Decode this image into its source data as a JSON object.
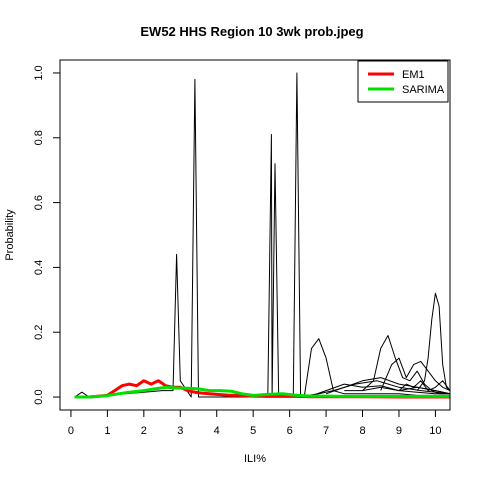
{
  "chart_data": {
    "type": "line",
    "title": "EW52 HHS Region 10 3wk prob.jpeg",
    "xlabel": "ILI%",
    "ylabel": "Probability",
    "xlim": [
      -0.3,
      10.4
    ],
    "ylim": [
      -0.04,
      1.04
    ],
    "xticks": [
      0,
      1,
      2,
      3,
      4,
      5,
      6,
      7,
      8,
      9,
      10
    ],
    "yticks": [
      0.0,
      0.2,
      0.4,
      0.6,
      0.8,
      1.0
    ],
    "xtick_labels": [
      "0",
      "1",
      "2",
      "3",
      "4",
      "5",
      "6",
      "7",
      "8",
      "9",
      "10"
    ],
    "ytick_labels": [
      "0.0",
      "0.2",
      "0.4",
      "0.6",
      "0.8",
      "1.0"
    ],
    "legend_position": "top-right",
    "legend": [
      {
        "label": "EM1",
        "color": "#ff0000"
      },
      {
        "label": "SARIMA",
        "color": "#00e000"
      }
    ],
    "series": [
      {
        "name": "EM1",
        "color": "#ff0000",
        "width": 3,
        "x": [
          0.1,
          0.5,
          1.0,
          1.2,
          1.4,
          1.6,
          1.8,
          2.0,
          2.2,
          2.4,
          2.6,
          2.8,
          3.0,
          3.2,
          3.4,
          3.6,
          3.8,
          4.0,
          4.3,
          4.6,
          5.0,
          5.4,
          5.8,
          6.2,
          6.6,
          7.0,
          7.5,
          8.0,
          9.0,
          10.0,
          10.4
        ],
        "y": [
          0.0,
          0.0,
          0.005,
          0.02,
          0.035,
          0.04,
          0.035,
          0.05,
          0.04,
          0.05,
          0.035,
          0.03,
          0.03,
          0.02,
          0.015,
          0.012,
          0.01,
          0.008,
          0.006,
          0.005,
          0.003,
          0.002,
          0.002,
          0.002,
          0.001,
          0.001,
          0.001,
          0.001,
          0.0,
          0.0,
          0.0
        ]
      },
      {
        "name": "SARIMA",
        "color": "#00e000",
        "width": 3,
        "x": [
          0.1,
          0.5,
          1.0,
          1.3,
          1.6,
          2.0,
          2.3,
          2.6,
          2.9,
          3.2,
          3.5,
          3.8,
          4.1,
          4.4,
          4.7,
          5.0,
          5.4,
          5.8,
          6.2,
          6.6,
          7.0,
          7.5,
          8.0,
          8.5,
          9.0,
          9.5,
          10.0,
          10.4
        ],
        "y": [
          0.0,
          0.0,
          0.004,
          0.01,
          0.015,
          0.02,
          0.025,
          0.03,
          0.028,
          0.027,
          0.025,
          0.02,
          0.02,
          0.018,
          0.01,
          0.005,
          0.008,
          0.01,
          0.005,
          0.003,
          0.003,
          0.002,
          0.002,
          0.002,
          0.002,
          0.002,
          0.002,
          0.002
        ]
      },
      {
        "x": [
          0.1,
          0.3,
          0.5,
          1.0,
          1.5,
          2.0,
          2.5,
          2.8,
          2.9,
          3.0,
          3.3,
          3.4,
          3.5,
          3.6,
          4.0,
          5.0,
          5.4,
          5.5,
          5.52,
          5.6,
          5.7,
          6.0,
          6.1,
          6.2,
          6.3,
          6.5,
          7.0,
          8.0,
          9.0,
          10.0,
          10.4
        ],
        "y": [
          0.0,
          0.015,
          0.0,
          0.005,
          0.01,
          0.015,
          0.02,
          0.02,
          0.44,
          0.05,
          0.0,
          0.98,
          0.0,
          0.0,
          0.0,
          0.0,
          0.0,
          0.81,
          0.0,
          0.72,
          0.0,
          0.0,
          0.0,
          1.0,
          0.0,
          0.0,
          0.0,
          0.0,
          0.0,
          0.0,
          0.0
        ]
      },
      {
        "x": [
          6.4,
          6.6,
          6.8,
          7.0,
          7.2,
          7.5,
          8.0,
          8.5,
          9.0,
          9.5,
          10.0,
          10.4
        ],
        "y": [
          0.0,
          0.15,
          0.18,
          0.12,
          0.02,
          0.01,
          0.01,
          0.01,
          0.01,
          0.005,
          0.005,
          0.0
        ]
      },
      {
        "x": [
          8.0,
          8.3,
          8.5,
          8.7,
          8.9,
          9.1,
          9.3,
          9.5,
          9.7,
          9.9,
          10.1,
          10.4
        ],
        "y": [
          0.02,
          0.05,
          0.15,
          0.19,
          0.12,
          0.06,
          0.05,
          0.08,
          0.04,
          0.02,
          0.01,
          0.01
        ]
      },
      {
        "x": [
          9.5,
          9.7,
          9.8,
          9.9,
          10.0,
          10.1,
          10.2,
          10.3,
          10.4
        ],
        "y": [
          0.02,
          0.05,
          0.12,
          0.24,
          0.32,
          0.28,
          0.1,
          0.03,
          0.02
        ]
      },
      {
        "x": [
          8.5,
          8.8,
          9.0,
          9.2,
          9.4,
          9.6,
          9.8,
          10.0,
          10.2,
          10.4
        ],
        "y": [
          0.02,
          0.1,
          0.12,
          0.06,
          0.1,
          0.11,
          0.08,
          0.05,
          0.03,
          0.02
        ]
      },
      {
        "x": [
          7.0,
          7.5,
          8.0,
          8.5,
          9.0,
          9.5,
          10.0,
          10.4
        ],
        "y": [
          0.01,
          0.03,
          0.05,
          0.06,
          0.04,
          0.03,
          0.02,
          0.01
        ]
      },
      {
        "x": [
          6.5,
          7.0,
          7.5,
          8.0,
          8.5,
          9.0,
          9.5,
          10.0,
          10.4
        ],
        "y": [
          0.0,
          0.02,
          0.04,
          0.03,
          0.035,
          0.02,
          0.03,
          0.02,
          0.01
        ]
      },
      {
        "x": [
          7.5,
          8.0,
          8.5,
          9.0,
          9.5,
          10.0,
          10.4
        ],
        "y": [
          0.02,
          0.02,
          0.03,
          0.02,
          0.015,
          0.01,
          0.01
        ]
      },
      {
        "x": [
          9.0,
          9.2,
          9.4,
          9.6,
          9.8,
          10.0,
          10.2,
          10.4
        ],
        "y": [
          0.02,
          0.04,
          0.03,
          0.05,
          0.02,
          0.03,
          0.05,
          0.02
        ]
      },
      {
        "x": [
          6.2,
          6.8,
          7.2,
          7.8,
          8.4,
          9.0,
          9.6,
          10.4
        ],
        "y": [
          0.0,
          0.01,
          0.02,
          0.04,
          0.05,
          0.03,
          0.02,
          0.01
        ]
      }
    ]
  }
}
